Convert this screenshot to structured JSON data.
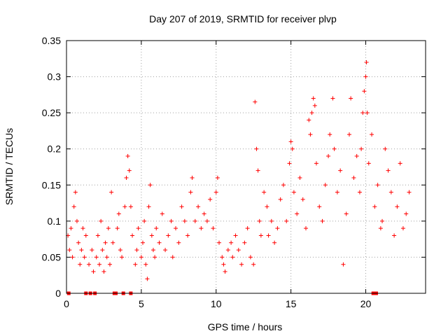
{
  "chart_data": {
    "type": "scatter",
    "title": "Day 207 of 2019, SRMTID for receiver plvp",
    "xlabel": "GPS time / hours",
    "ylabel": "SRMTID / TECUs",
    "xlim": [
      0,
      24
    ],
    "ylim": [
      0,
      0.35
    ],
    "x_ticks": [
      0,
      5,
      10,
      15,
      20
    ],
    "x_tick_labels": [
      "0",
      "5",
      "10",
      "15",
      "20"
    ],
    "y_ticks": [
      0,
      0.05,
      0.1,
      0.15,
      0.2,
      0.25,
      0.3,
      0.35
    ],
    "y_tick_labels": [
      "0",
      "0.05",
      "0.1",
      "0.15",
      "0.2",
      "0.25",
      "0.3",
      "0.35"
    ],
    "grid": true,
    "marker": "plus",
    "color": "#ff0000",
    "zero_markers_x": [
      0.15,
      1.3,
      1.6,
      1.9,
      3.2,
      3.3,
      3.8,
      4.3,
      20.5,
      20.7
    ],
    "series": [
      {
        "name": "SRMTID",
        "points": [
          [
            0.1,
            0.08
          ],
          [
            0.2,
            0.06
          ],
          [
            0.3,
            0.09
          ],
          [
            0.4,
            0.05
          ],
          [
            0.5,
            0.12
          ],
          [
            0.6,
            0.14
          ],
          [
            0.7,
            0.1
          ],
          [
            0.8,
            0.07
          ],
          [
            0.9,
            0.04
          ],
          [
            1.0,
            0.06
          ],
          [
            1.1,
            0.09
          ],
          [
            1.2,
            0.05
          ],
          [
            1.3,
            0.08
          ],
          [
            1.5,
            0.04
          ],
          [
            1.7,
            0.06
          ],
          [
            1.8,
            0.03
          ],
          [
            2.0,
            0.05
          ],
          [
            2.1,
            0.08
          ],
          [
            2.2,
            0.04
          ],
          [
            2.3,
            0.1
          ],
          [
            2.4,
            0.06
          ],
          [
            2.5,
            0.03
          ],
          [
            2.6,
            0.07
          ],
          [
            2.7,
            0.05
          ],
          [
            2.8,
            0.09
          ],
          [
            2.9,
            0.04
          ],
          [
            3.0,
            0.14
          ],
          [
            3.1,
            0.07
          ],
          [
            3.4,
            0.09
          ],
          [
            3.5,
            0.11
          ],
          [
            3.6,
            0.06
          ],
          [
            3.7,
            0.05
          ],
          [
            3.9,
            0.12
          ],
          [
            4.0,
            0.16
          ],
          [
            4.1,
            0.19
          ],
          [
            4.2,
            0.17
          ],
          [
            4.3,
            0.12
          ],
          [
            4.4,
            0.08
          ],
          [
            4.6,
            0.04
          ],
          [
            4.7,
            0.06
          ],
          [
            4.8,
            0.09
          ],
          [
            5.0,
            0.05
          ],
          [
            5.1,
            0.07
          ],
          [
            5.2,
            0.1
          ],
          [
            5.3,
            0.04
          ],
          [
            5.4,
            0.02
          ],
          [
            5.5,
            0.12
          ],
          [
            5.6,
            0.15
          ],
          [
            5.7,
            0.08
          ],
          [
            5.8,
            0.06
          ],
          [
            5.9,
            0.05
          ],
          [
            6.0,
            0.09
          ],
          [
            6.2,
            0.07
          ],
          [
            6.4,
            0.11
          ],
          [
            6.6,
            0.06
          ],
          [
            6.8,
            0.08
          ],
          [
            7.0,
            0.1
          ],
          [
            7.1,
            0.05
          ],
          [
            7.3,
            0.09
          ],
          [
            7.5,
            0.07
          ],
          [
            7.7,
            0.12
          ],
          [
            7.9,
            0.1
          ],
          [
            8.1,
            0.08
          ],
          [
            8.3,
            0.14
          ],
          [
            8.4,
            0.16
          ],
          [
            8.6,
            0.1
          ],
          [
            8.8,
            0.12
          ],
          [
            9.0,
            0.09
          ],
          [
            9.2,
            0.11
          ],
          [
            9.4,
            0.1
          ],
          [
            9.6,
            0.13
          ],
          [
            9.8,
            0.09
          ],
          [
            10.0,
            0.14
          ],
          [
            10.1,
            0.16
          ],
          [
            10.2,
            0.07
          ],
          [
            10.4,
            0.05
          ],
          [
            10.5,
            0.04
          ],
          [
            10.6,
            0.03
          ],
          [
            10.8,
            0.06
          ],
          [
            11.0,
            0.07
          ],
          [
            11.1,
            0.05
          ],
          [
            11.3,
            0.08
          ],
          [
            11.5,
            0.06
          ],
          [
            11.7,
            0.04
          ],
          [
            11.9,
            0.07
          ],
          [
            12.1,
            0.09
          ],
          [
            12.3,
            0.05
          ],
          [
            12.5,
            0.04
          ],
          [
            12.6,
            0.265
          ],
          [
            12.7,
            0.2
          ],
          [
            12.8,
            0.17
          ],
          [
            12.9,
            0.1
          ],
          [
            13.0,
            0.08
          ],
          [
            13.2,
            0.14
          ],
          [
            13.4,
            0.12
          ],
          [
            13.5,
            0.08
          ],
          [
            13.7,
            0.1
          ],
          [
            13.9,
            0.07
          ],
          [
            14.1,
            0.09
          ],
          [
            14.3,
            0.13
          ],
          [
            14.5,
            0.15
          ],
          [
            14.7,
            0.1
          ],
          [
            14.9,
            0.18
          ],
          [
            15.0,
            0.21
          ],
          [
            15.1,
            0.2
          ],
          [
            15.2,
            0.14
          ],
          [
            15.4,
            0.11
          ],
          [
            15.6,
            0.16
          ],
          [
            15.8,
            0.13
          ],
          [
            16.0,
            0.09
          ],
          [
            16.2,
            0.24
          ],
          [
            16.3,
            0.22
          ],
          [
            16.4,
            0.25
          ],
          [
            16.5,
            0.27
          ],
          [
            16.6,
            0.26
          ],
          [
            16.7,
            0.18
          ],
          [
            16.9,
            0.12
          ],
          [
            17.1,
            0.1
          ],
          [
            17.3,
            0.15
          ],
          [
            17.5,
            0.19
          ],
          [
            17.6,
            0.22
          ],
          [
            17.8,
            0.27
          ],
          [
            17.9,
            0.2
          ],
          [
            18.1,
            0.14
          ],
          [
            18.3,
            0.17
          ],
          [
            18.5,
            0.04
          ],
          [
            18.7,
            0.11
          ],
          [
            18.9,
            0.22
          ],
          [
            19.0,
            0.27
          ],
          [
            19.2,
            0.16
          ],
          [
            19.4,
            0.19
          ],
          [
            19.6,
            0.14
          ],
          [
            19.7,
            0.2
          ],
          [
            19.8,
            0.25
          ],
          [
            19.9,
            0.28
          ],
          [
            20.0,
            0.3
          ],
          [
            20.05,
            0.32
          ],
          [
            20.1,
            0.25
          ],
          [
            20.2,
            0.18
          ],
          [
            20.4,
            0.22
          ],
          [
            20.6,
            0.12
          ],
          [
            20.8,
            0.15
          ],
          [
            21.0,
            0.09
          ],
          [
            21.1,
            0.1
          ],
          [
            21.3,
            0.2
          ],
          [
            21.5,
            0.17
          ],
          [
            21.7,
            0.14
          ],
          [
            21.9,
            0.08
          ],
          [
            22.1,
            0.12
          ],
          [
            22.3,
            0.18
          ],
          [
            22.5,
            0.09
          ],
          [
            22.7,
            0.11
          ],
          [
            22.9,
            0.14
          ]
        ]
      }
    ]
  }
}
